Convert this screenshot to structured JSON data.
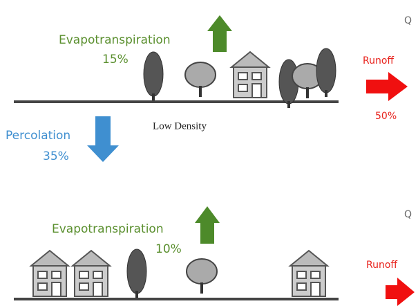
{
  "top_panel": {
    "evapotranspiration": {
      "label": "Evapotranspiration",
      "percent": "15%"
    },
    "runoff": {
      "label": "Runoff",
      "percent": "50%"
    },
    "percolation": {
      "label": "Percolation",
      "percent": "35%"
    },
    "caption": "Low Density",
    "corner": "Q"
  },
  "bottom_panel": {
    "evapotranspiration": {
      "label": "Evapotranspiration",
      "percent": "10%"
    },
    "runoff": {
      "label": "Runoff"
    },
    "corner": "Q"
  }
}
